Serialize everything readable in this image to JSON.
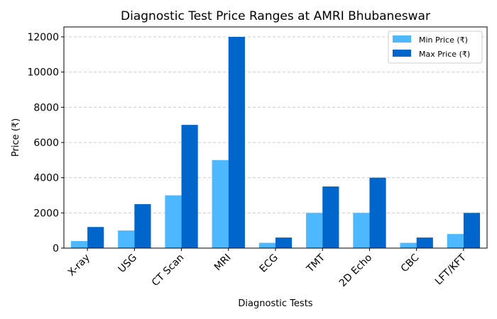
{
  "chart_data": {
    "type": "bar",
    "title": "Diagnostic Test Price Ranges at AMRI Bhubaneswar",
    "xlabel": "Diagnostic Tests",
    "ylabel": "Price (₹)",
    "ylim": [
      0,
      12500
    ],
    "yticks": [
      0,
      2000,
      4000,
      6000,
      8000,
      10000,
      12000
    ],
    "grid": "y-dashed",
    "legend": "top-right",
    "categories": [
      "X-ray",
      "USG",
      "CT Scan",
      "MRI",
      "ECG",
      "TMT",
      "2D Echo",
      "CBC",
      "LFT/KFT"
    ],
    "series": [
      {
        "name": "Min Price (₹)",
        "color": "#4db8ff",
        "values": [
          400,
          1000,
          3000,
          5000,
          300,
          2000,
          2000,
          300,
          800
        ]
      },
      {
        "name": "Max Price (₹)",
        "color": "#0066cc",
        "values": [
          1200,
          2500,
          7000,
          12000,
          600,
          3500,
          4000,
          600,
          2000
        ]
      }
    ]
  }
}
